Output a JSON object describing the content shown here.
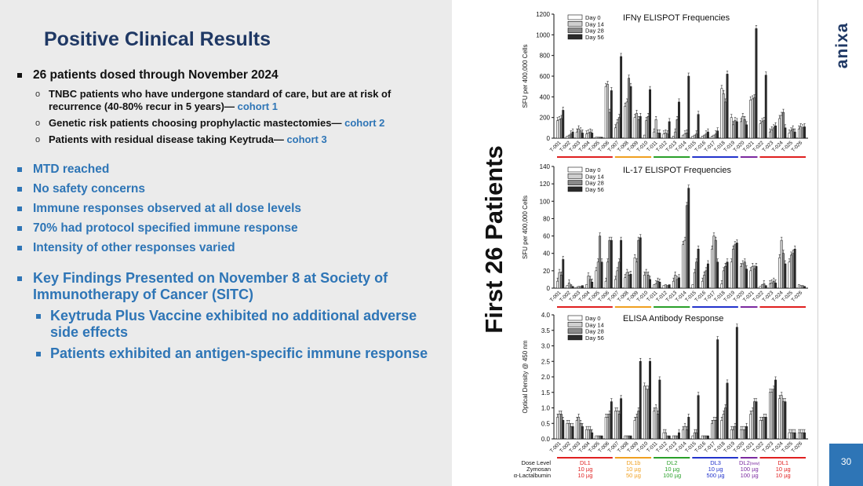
{
  "slide": {
    "title": "Positive Clinical Results",
    "vertical_label": "First 26 Patients",
    "logo_text": "anixa",
    "page_number": "30",
    "bullets": {
      "b1": "26 patients dosed through November 2024",
      "b1_sub": [
        {
          "text": "TNBC patients who have undergone standard of care, but are at risk of recurrence (40-80% recur in 5 years)—",
          "cohort": "cohort 1"
        },
        {
          "text": "Genetic risk patients choosing prophylactic mastectomies—",
          "cohort": "cohort 2"
        },
        {
          "text": "Patients with residual disease taking Keytruda—",
          "cohort": "cohort 3"
        }
      ],
      "b2": [
        "MTD reached",
        "No safety concerns",
        "Immune responses observed at all dose levels",
        "70% had protocol specified immune response",
        "Intensity of other responses varied"
      ],
      "b3": "Key Findings Presented on November 8 at Society of Immunotherapy of Cancer (SITC)",
      "b3_sub": [
        "Keytruda Plus Vaccine exhibited no additional adverse side effects",
        "Patients exhibited an antigen-specific immune response"
      ]
    }
  },
  "chart_data": [
    {
      "type": "bar",
      "title": "IFNγ ELISPOT Frequencies",
      "ylabel": "SFU per 400,000 Cells",
      "ylim": [
        0,
        1200
      ],
      "yticks": [
        0,
        200,
        400,
        600,
        800,
        1000,
        1200
      ],
      "legend": [
        "Day 0",
        "Day 14",
        "Day 28",
        "Day 56"
      ],
      "legend_placement": "top-left",
      "categories": [
        "T-001",
        "T-002",
        "T-003",
        "T-004",
        "T-005",
        "T-006",
        "T-007",
        "T-008",
        "T-009",
        "T-010",
        "T-011",
        "T-012",
        "T-013",
        "T-014",
        "T-015",
        "T-016",
        "T-017",
        "T-018",
        "T-019",
        "T-020",
        "T-021",
        "T-022",
        "T-023",
        "T-024",
        "T-025",
        "T-026"
      ],
      "series": [
        {
          "name": "Day 0",
          "values": [
            170,
            20,
            60,
            40,
            10,
            500,
            100,
            310,
            200,
            30,
            60,
            40,
            20,
            30,
            20,
            20,
            20,
            480,
            200,
            160,
            370,
            140,
            60,
            190,
            50,
            90
          ]
        },
        {
          "name": "Day 14",
          "values": [
            180,
            30,
            90,
            50,
            10,
            520,
            150,
            350,
            240,
            170,
            180,
            50,
            60,
            40,
            30,
            30,
            30,
            430,
            130,
            210,
            380,
            160,
            80,
            220,
            70,
            110
          ]
        },
        {
          "name": "Day 28",
          "values": [
            190,
            40,
            70,
            60,
            10,
            250,
            200,
            580,
            180,
            210,
            50,
            40,
            180,
            50,
            40,
            40,
            40,
            350,
            170,
            180,
            390,
            170,
            100,
            250,
            90,
            100
          ]
        },
        {
          "name": "Day 56",
          "values": [
            270,
            60,
            50,
            50,
            10,
            460,
            790,
            500,
            210,
            470,
            50,
            160,
            350,
            600,
            230,
            60,
            70,
            620,
            160,
            130,
            1060,
            610,
            120,
            100,
            60,
            110
          ]
        }
      ]
    },
    {
      "type": "bar",
      "title": "IL-17 ELISPOT Frequencies",
      "ylabel": "SFU per 400,000 Cells",
      "ylim": [
        0,
        140
      ],
      "yticks": [
        0,
        20,
        40,
        60,
        80,
        100,
        120,
        140
      ],
      "legend": [
        "Day 0",
        "Day 14",
        "Day 28",
        "Day 56"
      ],
      "legend_placement": "top-left",
      "categories": [
        "T-001",
        "T-002",
        "T-003",
        "T-004",
        "T-005",
        "T-006",
        "T-007",
        "T-008",
        "T-009",
        "T-010",
        "T-011",
        "T-012",
        "T-013",
        "T-014",
        "T-015",
        "T-016",
        "T-017",
        "T-018",
        "T-019",
        "T-020",
        "T-021",
        "T-022",
        "T-023",
        "T-024",
        "T-025",
        "T-026"
      ],
      "series": [
        {
          "name": "Day 0",
          "values": [
            8,
            3,
            1,
            4,
            20,
            8,
            10,
            12,
            35,
            15,
            4,
            3,
            8,
            50,
            4,
            8,
            45,
            5,
            30,
            25,
            20,
            2,
            5,
            35,
            30,
            4
          ]
        },
        {
          "name": "Day 14",
          "values": [
            18,
            6,
            2,
            14,
            30,
            30,
            20,
            18,
            30,
            18,
            5,
            4,
            15,
            55,
            18,
            15,
            60,
            20,
            45,
            28,
            25,
            4,
            6,
            55,
            38,
            3
          ]
        },
        {
          "name": "Day 28",
          "values": [
            15,
            4,
            2,
            10,
            60,
            55,
            30,
            15,
            55,
            15,
            8,
            3,
            10,
            95,
            30,
            20,
            55,
            25,
            50,
            30,
            22,
            5,
            8,
            40,
            40,
            3
          ]
        },
        {
          "name": "Day 56",
          "values": [
            33,
            2,
            3,
            7,
            30,
            55,
            55,
            16,
            58,
            10,
            7,
            4,
            12,
            115,
            45,
            28,
            30,
            30,
            52,
            22,
            25,
            3,
            6,
            28,
            45,
            2
          ]
        }
      ]
    },
    {
      "type": "bar",
      "title": "ELISA Antibody Response",
      "ylabel": "Optical Density @ 450 nm",
      "ylim": [
        0,
        4.0
      ],
      "yticks": [
        "0.0",
        "0.5",
        "1.0",
        "1.5",
        "2.0",
        "2.5",
        "3.0",
        "3.5",
        "4.0"
      ],
      "legend": [
        "Day 0",
        "Day 14",
        "Day 28",
        "Day 56"
      ],
      "legend_placement": "top-left",
      "categories": [
        "T-001",
        "T-002",
        "T-003",
        "T-004",
        "T-005",
        "T-006",
        "T-007",
        "T-008",
        "T-009",
        "T-010",
        "T-011",
        "T-012",
        "T-013",
        "T-014",
        "T-015",
        "T-016",
        "T-017",
        "T-018",
        "T-019",
        "T-020",
        "T-021",
        "T-022",
        "T-023",
        "T-024",
        "T-025",
        "T-026"
      ],
      "series": [
        {
          "name": "Day 0",
          "values": [
            0.7,
            0.5,
            0.6,
            0.3,
            0.1,
            0.7,
            0.9,
            0.1,
            0.6,
            1.7,
            0.9,
            0.2,
            0.1,
            0.3,
            0.1,
            0.1,
            0.5,
            0.6,
            0.3,
            0.3,
            0.8,
            0.6,
            1.5,
            1.3,
            0.2,
            0.2
          ]
        },
        {
          "name": "Day 14",
          "values": [
            0.8,
            0.5,
            0.7,
            0.3,
            0.1,
            0.7,
            0.9,
            0.1,
            0.7,
            1.6,
            1.0,
            0.2,
            0.1,
            0.4,
            0.2,
            0.1,
            0.6,
            0.8,
            0.3,
            0.3,
            0.9,
            0.6,
            1.5,
            1.4,
            0.2,
            0.2
          ]
        },
        {
          "name": "Day 28",
          "values": [
            0.8,
            0.4,
            0.5,
            0.3,
            0.1,
            0.8,
            0.8,
            0.1,
            0.9,
            1.6,
            0.8,
            0.1,
            0.1,
            0.3,
            0.2,
            0.1,
            0.6,
            1.0,
            0.4,
            0.3,
            1.2,
            0.7,
            1.6,
            1.2,
            0.2,
            0.2
          ]
        },
        {
          "name": "Day 56",
          "values": [
            0.6,
            0.4,
            0.4,
            0.2,
            0.1,
            1.2,
            1.3,
            0.1,
            2.5,
            2.5,
            1.9,
            0.1,
            0.2,
            0.7,
            1.4,
            0.1,
            3.2,
            1.8,
            3.6,
            0.4,
            1.2,
            0.7,
            1.9,
            1.2,
            0.2,
            0.2
          ]
        }
      ]
    }
  ],
  "dose_table": {
    "row_labels": [
      "Dose Level",
      "Zymosan",
      "α-Lactalbumin"
    ],
    "groups": [
      {
        "level": "DL1",
        "zymosan": "10 µg",
        "lactalbumin": "10 µg",
        "color": "#e02020"
      },
      {
        "level": "DL1b",
        "zymosan": "10 µg",
        "lactalbumin": "50 µg",
        "color": "#f0a020"
      },
      {
        "level": "DL2",
        "zymosan": "10 µg",
        "lactalbumin": "100 µg",
        "color": "#2aa02a"
      },
      {
        "level": "DL3",
        "zymosan": "10 µg",
        "lactalbumin": "500 µg",
        "color": "#2233cc"
      },
      {
        "level": "DL2",
        "level_sub": "(new)",
        "zymosan": "100 µg",
        "lactalbumin": "100 µg",
        "color": "#7b2aa0"
      },
      {
        "level": "DL1",
        "zymosan": "10 µg",
        "lactalbumin": "10 µg",
        "color": "#e02020"
      }
    ]
  }
}
